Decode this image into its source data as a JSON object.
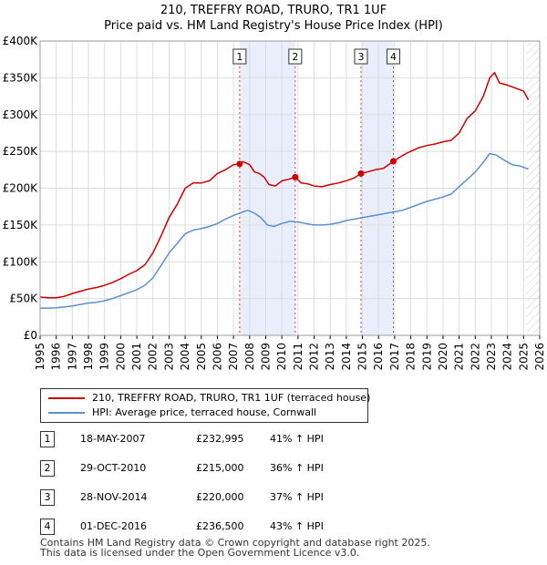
{
  "title_line1": "210, TREFFRY ROAD, TRURO, TR1 1UF",
  "title_line2": "Price paid vs. HM Land Registry's House Price Index (HPI)",
  "colors": {
    "property": "#cc0000",
    "hpi": "#5b8fd0",
    "shade": "#eaeefb",
    "grid": "#dddddd",
    "marker_line": "#d04040"
  },
  "chart_data": {
    "type": "line",
    "xlim": [
      1995,
      2026
    ],
    "ylim": [
      0,
      400000
    ],
    "y_ticks": [
      {
        "value": 0,
        "label": "£0"
      },
      {
        "value": 50000,
        "label": "£50K"
      },
      {
        "value": 100000,
        "label": "£100K"
      },
      {
        "value": 150000,
        "label": "£150K"
      },
      {
        "value": 200000,
        "label": "£200K"
      },
      {
        "value": 250000,
        "label": "£250K"
      },
      {
        "value": 300000,
        "label": "£300K"
      },
      {
        "value": 350000,
        "label": "£350K"
      },
      {
        "value": 400000,
        "label": "£400K"
      }
    ],
    "x_ticks": [
      "1995",
      "1996",
      "1997",
      "1998",
      "1999",
      "2000",
      "2001",
      "2002",
      "2003",
      "2004",
      "2005",
      "2006",
      "2007",
      "2008",
      "2009",
      "2010",
      "2011",
      "2012",
      "2013",
      "2014",
      "2015",
      "2016",
      "2017",
      "2018",
      "2019",
      "2020",
      "2021",
      "2022",
      "2023",
      "2024",
      "2025",
      "2026"
    ],
    "shaded_periods": [
      [
        2007.38,
        2010.83
      ],
      [
        2014.91,
        2016.92
      ]
    ],
    "future_hatch_from": 2025.2,
    "series": [
      {
        "name": "210, TREFFRY ROAD, TRURO, TR1 1UF (terraced house)",
        "color": "#cc0000",
        "x": [
          1995,
          1995.5,
          1996,
          1996.5,
          1997,
          1997.5,
          1998,
          1998.5,
          1999,
          1999.5,
          2000,
          2000.5,
          2001,
          2001.5,
          2002,
          2002.5,
          2003,
          2003.5,
          2004,
          2004.5,
          2005,
          2005.5,
          2006,
          2006.5,
          2007,
          2007.38,
          2007.6,
          2008,
          2008.3,
          2008.6,
          2008.9,
          2009.2,
          2009.6,
          2010,
          2010.4,
          2010.83,
          2011.2,
          2011.6,
          2012,
          2012.5,
          2013,
          2013.5,
          2014,
          2014.5,
          2014.91,
          2015.3,
          2015.8,
          2016.3,
          2016.92,
          2017.3,
          2017.7,
          2018,
          2018.5,
          2019,
          2019.5,
          2020,
          2020.5,
          2021,
          2021.5,
          2022,
          2022.5,
          2022.9,
          2023.2,
          2023.5,
          2024,
          2024.5,
          2025,
          2025.3
        ],
        "y": [
          52000,
          51000,
          51000,
          53000,
          57000,
          60000,
          63000,
          65000,
          68000,
          72000,
          77000,
          83000,
          88000,
          96000,
          112000,
          135000,
          160000,
          178000,
          200000,
          207000,
          207000,
          210000,
          220000,
          225000,
          232000,
          232995,
          236000,
          232000,
          222000,
          220000,
          215000,
          205000,
          203000,
          210000,
          212000,
          215000,
          207000,
          206000,
          203000,
          202000,
          205000,
          207000,
          210000,
          214000,
          220000,
          222000,
          225000,
          227000,
          236500,
          242000,
          247000,
          250000,
          255000,
          258000,
          260000,
          263000,
          265000,
          275000,
          295000,
          305000,
          325000,
          350000,
          357000,
          343000,
          340000,
          336000,
          332000,
          320000
        ]
      },
      {
        "name": "HPI: Average price, terraced house, Cornwall",
        "color": "#5b8fd0",
        "x": [
          1995,
          1995.5,
          1996,
          1996.5,
          1997,
          1997.5,
          1998,
          1998.5,
          1999,
          1999.5,
          2000,
          2000.5,
          2001,
          2001.5,
          2002,
          2002.5,
          2003,
          2003.5,
          2004,
          2004.5,
          2005,
          2005.5,
          2006,
          2006.5,
          2007,
          2007.5,
          2007.9,
          2008.3,
          2008.7,
          2009.1,
          2009.5,
          2010,
          2010.5,
          2011,
          2011.5,
          2012,
          2012.5,
          2013,
          2013.5,
          2014,
          2014.5,
          2015,
          2015.5,
          2016,
          2016.5,
          2017,
          2017.5,
          2018,
          2018.5,
          2019,
          2019.5,
          2020,
          2020.5,
          2021,
          2021.5,
          2022,
          2022.5,
          2022.9,
          2023.3,
          2023.8,
          2024.3,
          2024.8,
          2025.3
        ],
        "y": [
          37000,
          37000,
          37500,
          38500,
          40000,
          42000,
          44000,
          45000,
          47000,
          50000,
          54000,
          58000,
          62000,
          68000,
          78000,
          95000,
          112000,
          125000,
          138000,
          143000,
          145000,
          148000,
          152000,
          158000,
          163000,
          167000,
          170000,
          166000,
          160000,
          150000,
          148000,
          152000,
          155000,
          154000,
          152000,
          150000,
          150000,
          151000,
          153000,
          156000,
          158000,
          160000,
          162000,
          164000,
          166000,
          168000,
          170000,
          174000,
          178000,
          182000,
          185000,
          188000,
          192000,
          202000,
          212000,
          222000,
          235000,
          247000,
          245000,
          238000,
          232000,
          230000,
          226000
        ]
      }
    ],
    "markers": [
      {
        "label": "1",
        "x": 2007.38,
        "y": 232995
      },
      {
        "label": "2",
        "x": 2010.83,
        "y": 215000
      },
      {
        "label": "3",
        "x": 2014.91,
        "y": 220000
      },
      {
        "label": "4",
        "x": 2016.92,
        "y": 236500
      }
    ]
  },
  "legend": [
    {
      "label": "210, TREFFRY ROAD, TRURO, TR1 1UF (terraced house)",
      "color": "#cc0000"
    },
    {
      "label": "HPI: Average price, terraced house, Cornwall",
      "color": "#5b8fd0"
    }
  ],
  "sales": [
    {
      "num": "1",
      "date": "18-MAY-2007",
      "price": "£232,995",
      "hpi": "41% ↑ HPI"
    },
    {
      "num": "2",
      "date": "29-OCT-2010",
      "price": "£215,000",
      "hpi": "36% ↑ HPI"
    },
    {
      "num": "3",
      "date": "28-NOV-2014",
      "price": "£220,000",
      "hpi": "37% ↑ HPI"
    },
    {
      "num": "4",
      "date": "01-DEC-2016",
      "price": "£236,500",
      "hpi": "43% ↑ HPI"
    }
  ],
  "footer_line1": "Contains HM Land Registry data © Crown copyright and database right 2025.",
  "footer_line2": "This data is licensed under the Open Government Licence v3.0."
}
